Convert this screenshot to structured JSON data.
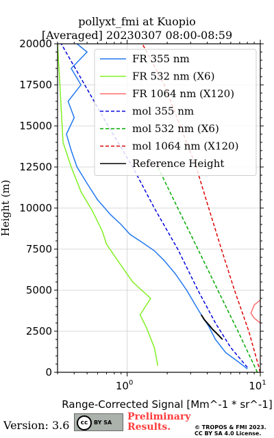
{
  "title_line1": "pollyxt_fmi at Kuopio",
  "title_line2": "[Averaged] 20230307 08:00-08:59",
  "footer": {
    "version": "Version: 3.6",
    "cc_label": "BY SA",
    "preliminary": [
      "Preliminary",
      "Results."
    ],
    "copyright": [
      "© TROPOS & FMI 2023.",
      "CC BY SA 4.0 License."
    ]
  },
  "colors": {
    "fr355": "#1f77f0",
    "fr532": "#80f020",
    "fr1064": "#ff6b6b",
    "mol355": "#0000dd",
    "mol532": "#00aa00",
    "mol1064": "#dd0000",
    "reference": "#000000"
  },
  "chart_data": {
    "type": "line",
    "xlabel": "Range-Corrected Signal [Mm^-1 * sr^-1]",
    "ylabel": "Height (m)",
    "xscale": "log",
    "xlim": [
      0.3,
      10
    ],
    "ylim": [
      0,
      20000
    ],
    "xticks": [
      1,
      10
    ],
    "xtick_labels": [
      "10^0",
      "10^1"
    ],
    "yticks": [
      0,
      2500,
      5000,
      7500,
      10000,
      12500,
      15000,
      17500,
      20000
    ],
    "grid": true,
    "legend_position": "top-right",
    "series": [
      {
        "name": "FR 355 nm",
        "style": "solid",
        "color_key": "fr355",
        "points": [
          [
            8,
            200
          ],
          [
            7.2,
            500
          ],
          [
            5.5,
            1200
          ],
          [
            4.6,
            2000
          ],
          [
            4.1,
            2800
          ],
          [
            3.6,
            3500
          ],
          [
            3.2,
            4200
          ],
          [
            2.8,
            5000
          ],
          [
            2.3,
            6000
          ],
          [
            1.9,
            6800
          ],
          [
            1.6,
            7400
          ],
          [
            1.3,
            7900
          ],
          [
            1.05,
            8400
          ],
          [
            0.9,
            9000
          ],
          [
            0.75,
            9600
          ],
          [
            0.6,
            10500
          ],
          [
            0.5,
            11500
          ],
          [
            0.42,
            12500
          ],
          [
            0.38,
            13500
          ],
          [
            0.35,
            14500
          ],
          [
            0.4,
            15500
          ],
          [
            0.36,
            16500
          ],
          [
            0.45,
            17500
          ],
          [
            0.38,
            18500
          ],
          [
            0.5,
            19500
          ],
          [
            0.42,
            20000
          ]
        ]
      },
      {
        "name": "FR 532 nm (X6)",
        "style": "solid",
        "color_key": "fr532",
        "points": [
          [
            1.7,
            400
          ],
          [
            1.6,
            1500
          ],
          [
            1.4,
            2700
          ],
          [
            1.25,
            3500
          ],
          [
            1.5,
            4500
          ],
          [
            1.1,
            5500
          ],
          [
            0.85,
            6800
          ],
          [
            0.7,
            7800
          ],
          [
            0.65,
            8600
          ],
          [
            0.55,
            9800
          ],
          [
            0.45,
            11000
          ],
          [
            0.38,
            12500
          ],
          [
            0.33,
            14000
          ],
          [
            0.32,
            16000
          ],
          [
            0.31,
            18000
          ],
          [
            0.3,
            20000
          ]
        ]
      },
      {
        "name": "FR 1064 nm (X120)",
        "style": "solid",
        "color_key": "fr1064",
        "points": [
          [
            10,
            3000
          ],
          [
            9,
            3300
          ],
          [
            8.5,
            3600
          ],
          [
            9,
            4100
          ],
          [
            10,
            4400
          ]
        ]
      },
      {
        "name": "mol 355 nm",
        "style": "dashed",
        "color_key": "mol355",
        "points": [
          [
            8,
            300
          ],
          [
            6,
            1500
          ],
          [
            4.6,
            3000
          ],
          [
            3.4,
            5000
          ],
          [
            2.4,
            7500
          ],
          [
            1.6,
            10000
          ],
          [
            1.1,
            12500
          ],
          [
            0.72,
            15000
          ],
          [
            0.48,
            17500
          ],
          [
            0.32,
            20000
          ]
        ]
      },
      {
        "name": "mol 532 nm (X6)",
        "style": "dashed",
        "color_key": "mol532",
        "points": [
          [
            9.5,
            0
          ],
          [
            6.8,
            2500
          ],
          [
            4.8,
            5000
          ],
          [
            3.4,
            7500
          ],
          [
            2.4,
            10000
          ],
          [
            1.7,
            12500
          ]
        ]
      },
      {
        "name": "mol 1064 nm (X120)",
        "style": "dashed",
        "color_key": "mol1064",
        "points": [
          [
            10,
            0
          ],
          [
            8.2,
            2500
          ],
          [
            6.4,
            5000
          ],
          [
            5.1,
            7500
          ],
          [
            4.1,
            10000
          ],
          [
            3.3,
            12500
          ],
          [
            2.5,
            15000
          ],
          [
            1.9,
            17500
          ],
          [
            1.3,
            20000
          ]
        ]
      },
      {
        "name": "Reference Height",
        "style": "solid",
        "color_key": "reference",
        "points": [
          [
            5.2,
            2000
          ],
          [
            4.8,
            2300
          ],
          [
            4.4,
            2600
          ],
          [
            4.1,
            2900
          ],
          [
            3.8,
            3200
          ],
          [
            3.6,
            3500
          ]
        ]
      }
    ]
  }
}
